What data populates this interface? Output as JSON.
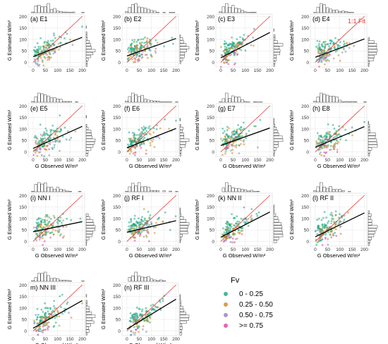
{
  "colors": {
    "fv_0_025": "#1aa880",
    "fv_025_050": "#c98a1b",
    "fv_050_075": "#8f7fb6",
    "fv_ge_075": "#dd3fa0",
    "fit_line": "#000000",
    "one_to_one": "#e53935",
    "hist": "#444444",
    "grid": "#e4e4e4",
    "panel_bg": "#ffffff"
  },
  "one_to_one_label": "1:1 Fit",
  "legend": {
    "title": "Fv",
    "items": [
      {
        "label": "0 - 0.25",
        "color_key": "fv_0_025"
      },
      {
        "label": "0.25 - 0.50",
        "color_key": "fv_025_050"
      },
      {
        "label": "0.50 - 0.75",
        "color_key": "fv_050_075"
      },
      {
        "label": ">= 0.75",
        "color_key": "fv_ge_075"
      }
    ]
  },
  "chart_data": {
    "type": "scatter",
    "xlabel": "G Observed W/m²",
    "ylabel": "G Estimated W/m²",
    "xlim": [
      -20,
      210
    ],
    "ylim": [
      -20,
      210
    ],
    "xticks": [
      0,
      50,
      100,
      150,
      200
    ],
    "yticks": [
      0,
      50,
      100,
      150,
      200
    ],
    "grid": true,
    "marginal_histograms": true,
    "legend_position": "bottom-right",
    "reference_line": "1:1",
    "panels": [
      {
        "label": "(a) E1",
        "fit_slope": 0.42,
        "fit_intercept": 25,
        "x_axis_label": false
      },
      {
        "label": "(b) E2",
        "fit_slope": 0.38,
        "fit_intercept": 28,
        "x_axis_label": false
      },
      {
        "label": "(c) E3",
        "fit_slope": 0.55,
        "fit_intercept": 20,
        "x_axis_label": false
      },
      {
        "label": "(d) E4",
        "fit_slope": 0.4,
        "fit_intercept": 22,
        "x_axis_label": false
      },
      {
        "label": "(e) E5",
        "fit_slope": 0.48,
        "fit_intercept": 15,
        "x_axis_label": true
      },
      {
        "label": "(f) E6",
        "fit_slope": 0.42,
        "fit_intercept": 18,
        "x_axis_label": true
      },
      {
        "label": "(g) E7",
        "fit_slope": 0.38,
        "fit_intercept": 28,
        "x_axis_label": true
      },
      {
        "label": "(h) E8",
        "fit_slope": 0.45,
        "fit_intercept": 20,
        "x_axis_label": true
      },
      {
        "label": "(i) NN I",
        "fit_slope": 0.22,
        "fit_intercept": 42,
        "x_axis_label": true
      },
      {
        "label": "(j) RF I",
        "fit_slope": 0.25,
        "fit_intercept": 40,
        "x_axis_label": true
      },
      {
        "label": "(k) NN II",
        "fit_slope": 0.55,
        "fit_intercept": 18,
        "x_axis_label": true
      },
      {
        "label": "(l) RF II",
        "fit_slope": 0.52,
        "fit_intercept": 20,
        "x_axis_label": true
      },
      {
        "label": "m) NN III",
        "fit_slope": 0.6,
        "fit_intercept": 12,
        "x_axis_label": true
      },
      {
        "label": "(n) RF III",
        "fit_slope": 0.65,
        "fit_intercept": 8,
        "x_axis_label": true
      }
    ]
  }
}
